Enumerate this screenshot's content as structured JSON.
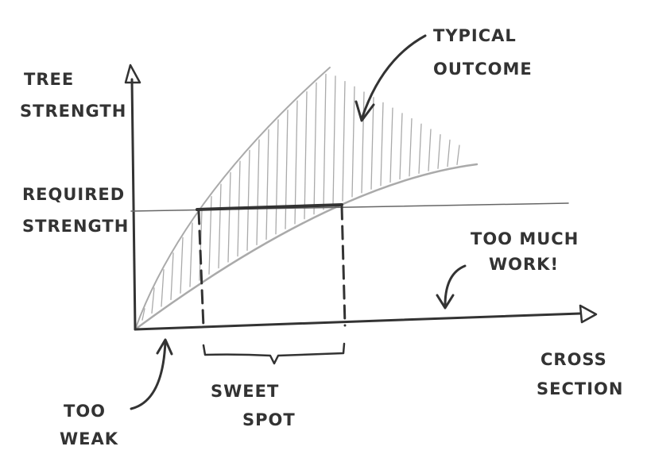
{
  "y_axis_label": [
    "TREE",
    "STRENGTH"
  ],
  "x_axis_label": [
    "CROSS",
    "SECTION"
  ],
  "required_strength_label": [
    "REQUIRED",
    "STRENGTH"
  ],
  "typical_outcome_label": [
    "TYPICAL",
    "OUTCOME"
  ],
  "too_much_work_label": [
    "TOO MUCH",
    "WORK!"
  ],
  "sweet_spot_label": [
    "SWEET",
    "SPOT"
  ],
  "too_weak_label": [
    "TOO",
    "WEAK"
  ]
}
